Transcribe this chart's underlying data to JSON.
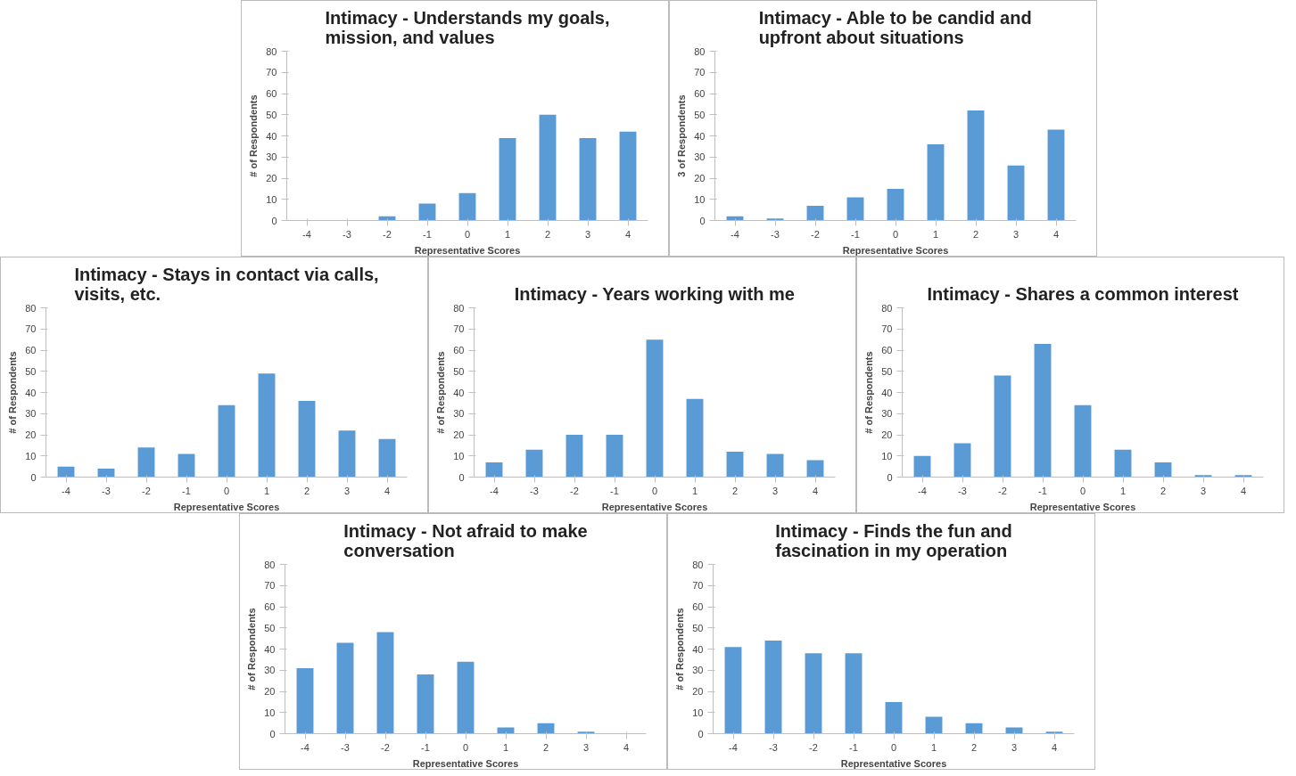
{
  "chart_data": [
    {
      "type": "bar",
      "title": "Intimacy - Understands my goals, mission, and values",
      "xlabel": "Representative Scores",
      "ylabel": "# of Respondents",
      "categories": [
        "-4",
        "-3",
        "-2",
        "-1",
        "0",
        "1",
        "2",
        "3",
        "4"
      ],
      "values": [
        0,
        0,
        2,
        8,
        13,
        39,
        50,
        39,
        42
      ],
      "color": "#5b9bd5",
      "ylim": [
        0,
        80
      ],
      "yticks": [
        0,
        10,
        20,
        30,
        40,
        50,
        60,
        70,
        80
      ]
    },
    {
      "type": "bar",
      "title": "Intimacy - Able to be candid and upfront about situations",
      "xlabel": "Representative Scores",
      "ylabel": "3 of Respondents",
      "categories": [
        "-4",
        "-3",
        "-2",
        "-1",
        "0",
        "1",
        "2",
        "3",
        "4"
      ],
      "values": [
        2,
        1,
        7,
        11,
        15,
        36,
        52,
        26,
        43
      ],
      "color": "#5b9bd5",
      "ylim": [
        0,
        80
      ],
      "yticks": [
        0,
        10,
        20,
        30,
        40,
        50,
        60,
        70,
        80
      ]
    },
    {
      "type": "bar",
      "title": "Intimacy - Stays in contact via calls, visits, etc.",
      "xlabel": "Representative Scores",
      "ylabel": "# of Respondents",
      "categories": [
        "-4",
        "-3",
        "-2",
        "-1",
        "0",
        "1",
        "2",
        "3",
        "4"
      ],
      "values": [
        5,
        4,
        14,
        11,
        34,
        49,
        36,
        22,
        18
      ],
      "color": "#5b9bd5",
      "ylim": [
        0,
        80
      ],
      "yticks": [
        0,
        10,
        20,
        30,
        40,
        50,
        60,
        70,
        80
      ]
    },
    {
      "type": "bar",
      "title": "Intimacy - Years working with me",
      "xlabel": "Representative Scores",
      "ylabel": "# of Respondents",
      "categories": [
        "-4",
        "-3",
        "-2",
        "-1",
        "0",
        "1",
        "2",
        "3",
        "4"
      ],
      "values": [
        7,
        13,
        20,
        20,
        65,
        37,
        12,
        11,
        8
      ],
      "color": "#5b9bd5",
      "ylim": [
        0,
        80
      ],
      "yticks": [
        0,
        10,
        20,
        30,
        40,
        50,
        60,
        70,
        80
      ]
    },
    {
      "type": "bar",
      "title": "Intimacy - Shares a common interest",
      "xlabel": "Representative Scores",
      "ylabel": "# of Respondents",
      "categories": [
        "-4",
        "-3",
        "-2",
        "-1",
        "0",
        "1",
        "2",
        "3",
        "4"
      ],
      "values": [
        10,
        16,
        48,
        63,
        34,
        13,
        7,
        1,
        1
      ],
      "color": "#5b9bd5",
      "ylim": [
        0,
        80
      ],
      "yticks": [
        0,
        10,
        20,
        30,
        40,
        50,
        60,
        70,
        80
      ]
    },
    {
      "type": "bar",
      "title": "Intimacy - Not afraid to make conversation",
      "xlabel": "Representative Scores",
      "ylabel": "# of Respondents",
      "categories": [
        "-4",
        "-3",
        "-2",
        "-1",
        "0",
        "1",
        "2",
        "3",
        "4"
      ],
      "values": [
        31,
        43,
        48,
        28,
        34,
        3,
        5,
        1,
        0
      ],
      "color": "#5b9bd5",
      "ylim": [
        0,
        80
      ],
      "yticks": [
        0,
        10,
        20,
        30,
        40,
        50,
        60,
        70,
        80
      ]
    },
    {
      "type": "bar",
      "title": "Intimacy - Finds the fun and fascination in my operation",
      "xlabel": "Representative Scores",
      "ylabel": "# of Respondents",
      "categories": [
        "-4",
        "-3",
        "-2",
        "-1",
        "0",
        "1",
        "2",
        "3",
        "4"
      ],
      "values": [
        41,
        44,
        38,
        38,
        15,
        8,
        5,
        3,
        1
      ],
      "color": "#5b9bd5",
      "ylim": [
        0,
        80
      ],
      "yticks": [
        0,
        10,
        20,
        30,
        40,
        50,
        60,
        70,
        80
      ]
    }
  ]
}
